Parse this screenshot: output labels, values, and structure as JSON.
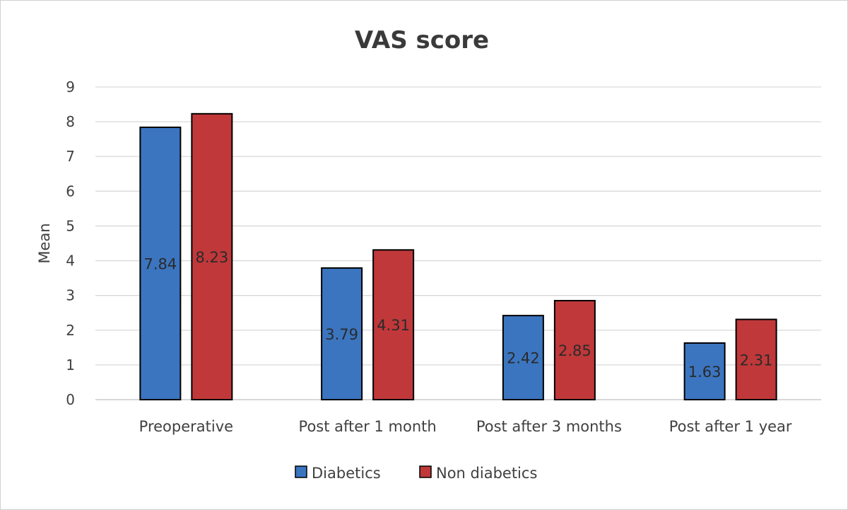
{
  "chart_data": {
    "type": "bar",
    "title": "VAS score",
    "xlabel": "",
    "ylabel": "Mean",
    "ylim": [
      0,
      9
    ],
    "yticks": [
      0,
      1,
      2,
      3,
      4,
      5,
      6,
      7,
      8,
      9
    ],
    "grid": true,
    "legend_position": "bottom",
    "categories": [
      "Preoperative",
      "Post after 1 month",
      "Post after 3 months",
      "Post after 1 year"
    ],
    "series": [
      {
        "name": "Diabetics",
        "color": "#3b75c0",
        "values": [
          7.84,
          3.79,
          2.42,
          1.63
        ],
        "labels": [
          "7.84",
          "3.79",
          "2.42",
          "1.63"
        ]
      },
      {
        "name": "Non diabetics",
        "color": "#c0383a",
        "values": [
          8.23,
          4.31,
          2.85,
          2.31
        ],
        "labels": [
          "8.23",
          "4.31",
          "2.85",
          "2.31"
        ]
      }
    ]
  }
}
